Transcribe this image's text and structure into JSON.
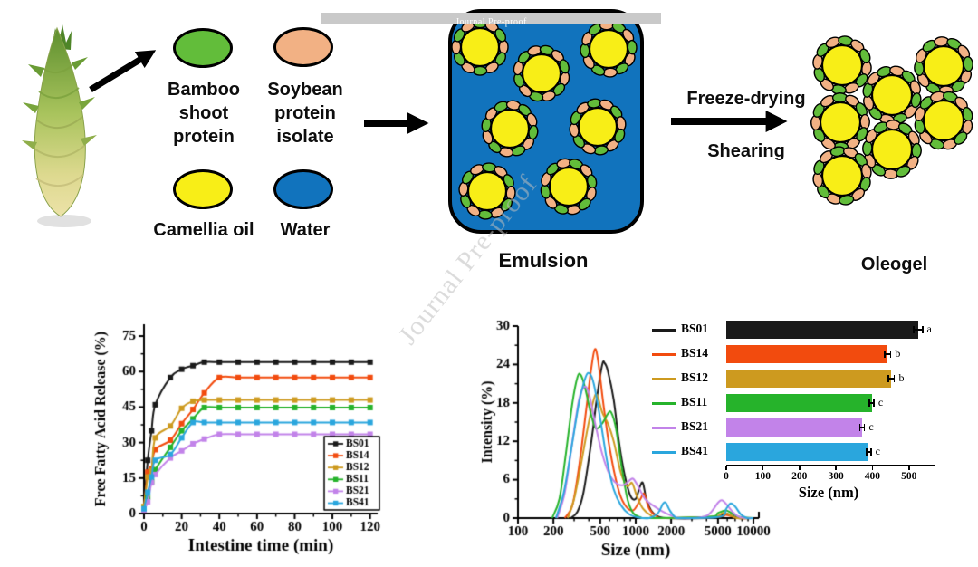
{
  "watermarks": {
    "bar_text": "Journal Pre-proof",
    "diagonal_text": "Journal Pre-proof"
  },
  "schematic": {
    "ingredients": [
      {
        "label": "Bamboo shoot protein",
        "color": "#62bd3a"
      },
      {
        "label": "Soybean protein isolate",
        "color": "#f2b184"
      },
      {
        "label": "Camellia oil",
        "color": "#f8ee17"
      },
      {
        "label": "Water",
        "color": "#1173bd"
      }
    ],
    "emulsion_label": "Emulsion",
    "process_labels": {
      "top": "Freeze-drying",
      "bottom": "Shearing"
    },
    "oleogel_label": "Oleogel",
    "droplet_colors": {
      "oil_core": "#f8ee17",
      "protein_green": "#62bd3a",
      "protein_peach": "#f2b184",
      "water_bg": "#1173bd"
    }
  },
  "chart_data": [
    {
      "id": "ffa_release",
      "type": "line",
      "xlabel": "Intestine time (min)",
      "ylabel": "Free Fatty Acid Release (%)",
      "xlim": [
        0,
        124
      ],
      "ylim": [
        0,
        80
      ],
      "xticks": [
        0,
        20,
        40,
        60,
        80,
        100,
        120
      ],
      "xminorticks": [
        10,
        30,
        50,
        70,
        90,
        110
      ],
      "yticks": [
        0,
        15,
        30,
        45,
        60,
        75
      ],
      "yminorticks": [
        7.5,
        22.5,
        37.5,
        52.5,
        67.5
      ],
      "legend_position": "bottom-right",
      "marker": "square",
      "x": [
        0,
        2,
        4,
        6,
        14,
        20,
        26,
        32,
        40,
        50,
        60,
        70,
        80,
        90,
        100,
        110,
        120
      ],
      "series": [
        {
          "name": "BS01",
          "color": "#1a1a1a",
          "values": [
            2,
            22.5,
            35,
            46,
            57.5,
            61,
            62.5,
            64,
            64,
            64,
            64,
            64,
            64,
            64,
            64,
            64,
            64
          ]
        },
        {
          "name": "BS14",
          "color": "#f24b0e",
          "values": [
            2,
            17.5,
            19,
            27,
            31,
            38,
            44,
            51,
            57.5,
            57.5,
            57.5,
            57.5,
            57.5,
            57.5,
            57.5,
            57.5,
            57.5
          ]
        },
        {
          "name": "BS12",
          "color": "#cd9a1f",
          "values": [
            3,
            15.5,
            18,
            32,
            37,
            44.5,
            47.5,
            48,
            48,
            48,
            48,
            48,
            48,
            48,
            48,
            48,
            48
          ]
        },
        {
          "name": "BS11",
          "color": "#26b32b",
          "values": [
            2,
            7,
            13.5,
            18.5,
            28,
            35,
            40,
            44.8,
            44.8,
            44.8,
            44.8,
            44.8,
            44.8,
            44.8,
            44.8,
            44.8,
            44.8
          ]
        },
        {
          "name": "BS21",
          "color": "#c283e9",
          "values": [
            1.5,
            5,
            13,
            16.5,
            23.5,
            26.5,
            29.5,
            31.5,
            33.5,
            33.5,
            33.5,
            33.5,
            33.5,
            33.5,
            33.5,
            33.5,
            33.5
          ]
        },
        {
          "name": "BS41",
          "color": "#2aa6dd",
          "values": [
            2,
            9,
            15.5,
            22.5,
            25,
            32,
            38.5,
            38.5,
            38.5,
            38.5,
            38.5,
            38.5,
            38.5,
            38.5,
            38.5,
            38.5,
            38.5
          ]
        }
      ]
    },
    {
      "id": "size_distribution",
      "type": "line",
      "xscale": "log",
      "xlabel": "Size (nm)",
      "ylabel": "Intensity (%)",
      "xlim": [
        100,
        10000
      ],
      "ylim": [
        0,
        30
      ],
      "xticks": [
        100,
        200,
        500,
        1000,
        2000,
        5000,
        10000
      ],
      "xminorticks": [
        300,
        400,
        600,
        700,
        800,
        900,
        3000,
        4000,
        6000,
        7000,
        8000,
        9000
      ],
      "yticks": [
        0,
        6,
        12,
        18,
        24,
        30
      ],
      "yminorticks": [
        3,
        9,
        15,
        21,
        27
      ],
      "series": [
        {
          "name": "BS01",
          "color": "#1a1a1a",
          "points": [
            [
              280,
              0
            ],
            [
              320,
              1
            ],
            [
              360,
              4
            ],
            [
              420,
              12
            ],
            [
              470,
              19
            ],
            [
              520,
              24
            ],
            [
              545,
              24.2
            ],
            [
              580,
              23
            ],
            [
              650,
              18.5
            ],
            [
              720,
              12
            ],
            [
              800,
              7
            ],
            [
              900,
              3.5
            ],
            [
              1000,
              3
            ],
            [
              1080,
              4.8
            ],
            [
              1150,
              5.5
            ],
            [
              1230,
              3
            ],
            [
              1350,
              1.2
            ],
            [
              1500,
              0.4
            ],
            [
              1800,
              0
            ],
            [
              4000,
              0
            ],
            [
              5000,
              0.3
            ],
            [
              5800,
              0.7
            ],
            [
              6500,
              0.4
            ],
            [
              7500,
              0
            ],
            [
              10000,
              0
            ]
          ]
        },
        {
          "name": "BS14",
          "color": "#f24b0e",
          "points": [
            [
              250,
              0
            ],
            [
              290,
              2
            ],
            [
              330,
              8
            ],
            [
              380,
              17
            ],
            [
              420,
              23.5
            ],
            [
              450,
              26.4
            ],
            [
              480,
              24.5
            ],
            [
              530,
              18
            ],
            [
              600,
              11
            ],
            [
              700,
              5
            ],
            [
              800,
              2.2
            ],
            [
              950,
              1.2
            ],
            [
              1100,
              3
            ],
            [
              1180,
              3.8
            ],
            [
              1300,
              1.5
            ],
            [
              1500,
              0.3
            ],
            [
              1800,
              0
            ],
            [
              5000,
              0.2
            ],
            [
              5800,
              0.5
            ],
            [
              6500,
              0.3
            ],
            [
              7500,
              0
            ],
            [
              10000,
              0
            ]
          ]
        },
        {
          "name": "BS12",
          "color": "#cd9a1f",
          "points": [
            [
              265,
              0
            ],
            [
              300,
              3
            ],
            [
              340,
              8
            ],
            [
              390,
              14
            ],
            [
              440,
              18.5
            ],
            [
              470,
              19.2
            ],
            [
              520,
              16.5
            ],
            [
              580,
              14.8
            ],
            [
              650,
              12
            ],
            [
              750,
              7
            ],
            [
              850,
              5
            ],
            [
              930,
              5.5
            ],
            [
              1020,
              3.5
            ],
            [
              1150,
              1.5
            ],
            [
              1350,
              0.4
            ],
            [
              1600,
              0
            ],
            [
              4500,
              0.2
            ],
            [
              5500,
              0.8
            ],
            [
              6300,
              0.5
            ],
            [
              7200,
              0
            ],
            [
              10000,
              0
            ]
          ]
        },
        {
          "name": "BS11",
          "color": "#26b32b",
          "points": [
            [
              195,
              0
            ],
            [
              225,
              3
            ],
            [
              255,
              10
            ],
            [
              290,
              18
            ],
            [
              320,
              22
            ],
            [
              340,
              22.4
            ],
            [
              370,
              20.5
            ],
            [
              420,
              16
            ],
            [
              460,
              14
            ],
            [
              520,
              14.8
            ],
            [
              580,
              16.3
            ],
            [
              620,
              16.5
            ],
            [
              680,
              14
            ],
            [
              760,
              8
            ],
            [
              850,
              3
            ],
            [
              950,
              0.8
            ],
            [
              1100,
              0.1
            ],
            [
              1300,
              0
            ],
            [
              4200,
              0.2
            ],
            [
              5000,
              0.8
            ],
            [
              5800,
              1.2
            ],
            [
              6500,
              0.8
            ],
            [
              7500,
              0.2
            ],
            [
              10000,
              0
            ]
          ]
        },
        {
          "name": "BS21",
          "color": "#c283e9",
          "points": [
            [
              215,
              0
            ],
            [
              250,
              4
            ],
            [
              290,
              12
            ],
            [
              330,
              18.5
            ],
            [
              365,
              20.5
            ],
            [
              400,
              19.5
            ],
            [
              450,
              15
            ],
            [
              520,
              10
            ],
            [
              600,
              6.8
            ],
            [
              700,
              5.3
            ],
            [
              800,
              5.2
            ],
            [
              900,
              6
            ],
            [
              960,
              6.1
            ],
            [
              1060,
              4.8
            ],
            [
              1200,
              3
            ],
            [
              1400,
              2
            ],
            [
              1700,
              1
            ],
            [
              2000,
              0.4
            ],
            [
              2400,
              0
            ],
            [
              3800,
              0.2
            ],
            [
              4400,
              1
            ],
            [
              5000,
              2.4
            ],
            [
              5400,
              2.8
            ],
            [
              6000,
              2
            ],
            [
              6800,
              0.8
            ],
            [
              7800,
              0.1
            ],
            [
              10000,
              0
            ]
          ]
        },
        {
          "name": "BS41",
          "color": "#2aa6dd",
          "points": [
            [
              210,
              0
            ],
            [
              245,
              4
            ],
            [
              285,
              11
            ],
            [
              330,
              18
            ],
            [
              375,
              22
            ],
            [
              405,
              22.6
            ],
            [
              440,
              21
            ],
            [
              500,
              15.5
            ],
            [
              570,
              9
            ],
            [
              650,
              4.5
            ],
            [
              750,
              2
            ],
            [
              880,
              0.6
            ],
            [
              1050,
              0.1
            ],
            [
              1300,
              0
            ],
            [
              1550,
              0.8
            ],
            [
              1700,
              2.2
            ],
            [
              1800,
              2.4
            ],
            [
              1950,
              1.2
            ],
            [
              2150,
              0.2
            ],
            [
              2400,
              0
            ],
            [
              5200,
              0.2
            ],
            [
              5900,
              1.5
            ],
            [
              6400,
              2.3
            ],
            [
              7000,
              1.8
            ],
            [
              7800,
              0.6
            ],
            [
              8800,
              0
            ],
            [
              10000,
              0
            ]
          ]
        }
      ]
    },
    {
      "id": "mean_size",
      "type": "bar",
      "orientation": "horizontal",
      "xlabel": "Size (nm)",
      "xlim": [
        0,
        560
      ],
      "xticks": [
        0,
        100,
        200,
        300,
        400,
        500
      ],
      "categories": [
        "BS01",
        "BS14",
        "BS12",
        "BS11",
        "BS21",
        "BS41"
      ],
      "colors": [
        "#1a1a1a",
        "#f24b0e",
        "#cd9a1f",
        "#26b32b",
        "#c283e9",
        "#2aa6dd"
      ],
      "values": [
        525,
        442,
        452,
        398,
        372,
        390
      ],
      "errors": [
        14,
        10,
        10,
        8,
        8,
        8
      ],
      "sig_letters": [
        "a",
        "b",
        "b",
        "c",
        "c",
        "c"
      ]
    }
  ]
}
